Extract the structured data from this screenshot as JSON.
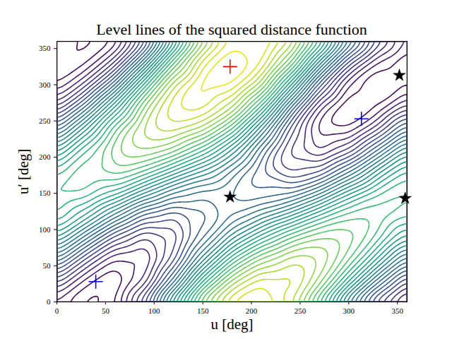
{
  "chart_data": {
    "type": "contour",
    "title": "Level lines of the squared distance function",
    "xlabel": "u [deg]",
    "ylabel": "u′ [deg]",
    "x": [
      0,
      30,
      60,
      90,
      120,
      150,
      180,
      210,
      240,
      270,
      300,
      330,
      360
    ],
    "y": [
      0,
      30,
      60,
      90,
      120,
      150,
      180,
      210,
      240,
      270,
      300,
      330,
      360
    ],
    "values": [
      [
        2.15,
        0.93,
        1.75,
        5.38,
        10.86,
        15.88,
        18.89,
        19.53,
        17.67,
        13.58,
        8.69,
        4.7,
        2.15
      ],
      [
        4.68,
        2.07,
        1.03,
        2.83,
        7.32,
        12.47,
        16.36,
        18.39,
        18.39,
        16.14,
        12.22,
        8.11,
        4.68
      ],
      [
        7.97,
        4.72,
        2.26,
        2.08,
        4.86,
        9.19,
        13.06,
        15.74,
        17.16,
        16.88,
        14.68,
        11.39,
        7.97
      ],
      [
        11.14,
        8.16,
        5.11,
        3.35,
        4.15,
        6.91,
        9.89,
        12.3,
        14.31,
        15.61,
        15.4,
        13.67,
        11.14
      ],
      [
        13.35,
        11.47,
        8.81,
        6.29,
        5.37,
        6.24,
        7.69,
        8.99,
        10.61,
        12.67,
        14.17,
        14.34,
        13.35
      ],
      [
        13.99,
        13.77,
        12.38,
        10.11,
        8.2,
        7.38,
        7.05,
        6.68,
        7.04,
        8.85,
        11.35,
        13.2,
        13.99
      ],
      [
        12.89,
        14.44,
        14.86,
        13.79,
        11.87,
        10.0,
        8.14,
        6.01,
        4.56,
        5.17,
        7.68,
        10.58,
        12.89
      ],
      [
        10.36,
        13.3,
        15.58,
        16.35,
        15.4,
        13.41,
        10.68,
        7.16,
        3.84,
        2.62,
        4.14,
        7.17,
        10.36
      ],
      [
        7.07,
        10.65,
        14.35,
        17.09,
        17.86,
        16.69,
        13.97,
        9.81,
        5.07,
        1.87,
        1.68,
        3.89,
        7.07
      ],
      [
        3.9,
        7.21,
        11.49,
        15.82,
        18.58,
        18.97,
        17.14,
        13.25,
        7.92,
        3.14,
        0.97,
        1.61,
        3.9
      ],
      [
        1.69,
        3.9,
        7.79,
        12.88,
        17.35,
        19.64,
        19.34,
        16.56,
        11.63,
        6.08,
        2.19,
        0.95,
        1.69
      ],
      [
        1.05,
        1.6,
        4.23,
        9.06,
        14.53,
        18.5,
        19.99,
        18.86,
        15.19,
        9.9,
        5.02,
        2.08,
        1.05
      ],
      [
        2.15,
        0.93,
        1.75,
        5.38,
        10.86,
        15.88,
        18.89,
        19.53,
        17.67,
        13.58,
        8.69,
        4.7,
        2.15
      ]
    ],
    "levels": [
      1.2,
      1.8,
      2.4,
      3,
      3.6,
      4.2,
      4.8,
      5.4,
      6,
      6.6,
      7.2,
      7.8,
      8.4,
      9,
      9.6,
      10.2,
      10.8,
      11.4,
      12,
      12.6,
      13.2,
      13.8,
      14.4,
      15,
      15.6,
      16.2,
      16.8,
      17.4,
      18,
      18.6,
      19.2,
      19.8
    ],
    "color": "viridis",
    "xlim": [
      0,
      360
    ],
    "ylim": [
      0,
      360
    ],
    "xticks": [
      0,
      50,
      100,
      150,
      200,
      250,
      300,
      350
    ],
    "yticks": [
      0,
      50,
      100,
      150,
      200,
      250,
      300,
      350
    ],
    "points": [
      {
        "color": "red",
        "marker": "plus",
        "x": [
          178
        ],
        "y": [
          325
        ]
      },
      {
        "color": "blue",
        "marker": "plus",
        "x": [
          40,
          313
        ],
        "y": [
          28,
          253
        ]
      },
      {
        "color": "black",
        "marker": "star",
        "x": [
          178,
          352,
          358
        ],
        "y": [
          145,
          313,
          143
        ]
      }
    ]
  }
}
